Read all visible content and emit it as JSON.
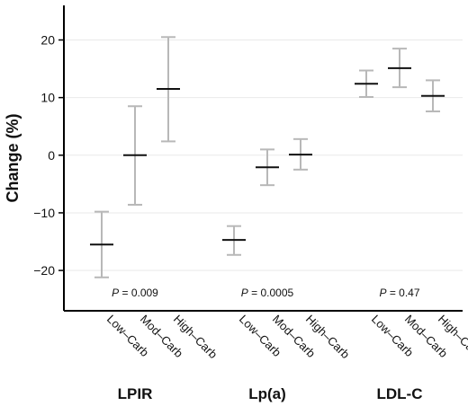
{
  "chart_data": {
    "type": "errorbar",
    "ylabel": "Change (%)",
    "ylim": [
      -27,
      26
    ],
    "yticks": [
      -20,
      -10,
      0,
      10,
      20
    ],
    "grid": true,
    "legend": "none",
    "colors": {
      "bar": "#b8b8b8",
      "mean": "#111111",
      "grid": "#e9e9e9",
      "axis": "#000000"
    },
    "groups": [
      {
        "name": "LPIR",
        "p_value": "P = 0.009",
        "items": [
          {
            "category": "Low–Carb",
            "mean": -15.5,
            "lower": -21.2,
            "upper": -9.8
          },
          {
            "category": "Mod–Carb",
            "mean": 0.0,
            "lower": -8.6,
            "upper": 8.5
          },
          {
            "category": "High–Carb",
            "mean": 11.5,
            "lower": 2.4,
            "upper": 20.5
          }
        ]
      },
      {
        "name": "Lp(a)",
        "p_value": "P = 0.0005",
        "items": [
          {
            "category": "Low–Carb",
            "mean": -14.7,
            "lower": -17.3,
            "upper": -12.3
          },
          {
            "category": "Mod–Carb",
            "mean": -2.1,
            "lower": -5.2,
            "upper": 1.0
          },
          {
            "category": "High–Carb",
            "mean": 0.1,
            "lower": -2.5,
            "upper": 2.8
          }
        ]
      },
      {
        "name": "LDL-C",
        "p_value": "P = 0.47",
        "items": [
          {
            "category": "Low–Carb",
            "mean": 12.4,
            "lower": 10.1,
            "upper": 14.7
          },
          {
            "category": "Mod–Carb",
            "mean": 15.1,
            "lower": 11.8,
            "upper": 18.5
          },
          {
            "category": "High–Carb",
            "mean": 10.3,
            "lower": 7.6,
            "upper": 13.0
          }
        ]
      }
    ]
  }
}
